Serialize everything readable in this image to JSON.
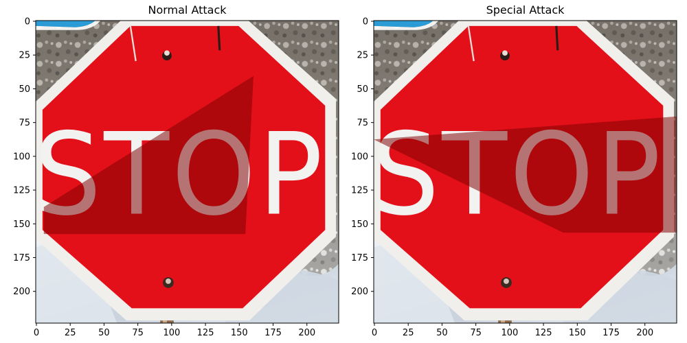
{
  "figure": {
    "panels": [
      {
        "title": "Normal Attack",
        "sign_text": "STOP",
        "shadow_polygon_data": [
          [
            6,
            138
          ],
          [
            161,
            41
          ],
          [
            155,
            158
          ],
          [
            6,
            158
          ]
        ]
      },
      {
        "title": "Special Attack",
        "sign_text": "STOP",
        "shadow_polygon_data": [
          [
            0,
            88
          ],
          [
            224,
            71
          ],
          [
            224,
            157
          ],
          [
            140,
            157
          ]
        ]
      }
    ],
    "x_ticks": [
      0,
      25,
      50,
      75,
      100,
      125,
      150,
      175,
      200
    ],
    "y_ticks": [
      0,
      25,
      50,
      75,
      100,
      125,
      150,
      175,
      200
    ],
    "x_range": [
      -0.5,
      223.5
    ],
    "y_range": [
      223.5,
      -0.5
    ],
    "colors": {
      "sign_red": "#e3101a",
      "sign_border": "#f1efec",
      "shadow": "#7c0000",
      "letters": "#f2f2f0",
      "letters_shadowed": "#8d8a86",
      "sky_blue": "#2a9bd4"
    }
  }
}
